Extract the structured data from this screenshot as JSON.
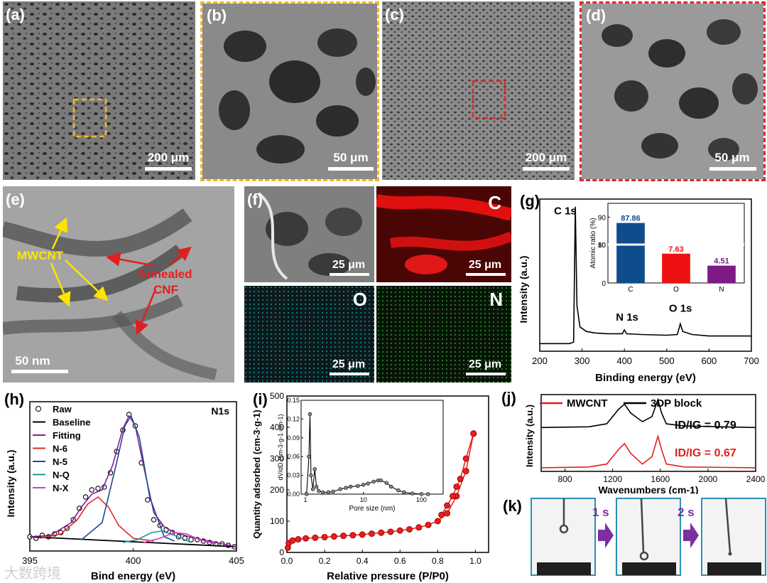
{
  "panels": {
    "a": {
      "label": "(a)",
      "scale": "200 μm"
    },
    "b": {
      "label": "(b)",
      "scale": "50 μm"
    },
    "c": {
      "label": "(c)",
      "scale": "200 μm"
    },
    "d": {
      "label": "(d)",
      "scale": "50 μm"
    },
    "e": {
      "label": "(e)",
      "scale": "50 nm",
      "annotation_1": "MWCNT",
      "annotation_2a": "Annealed",
      "annotation_2b": "CNF"
    },
    "f": {
      "label": "(f)",
      "scale": "25 μm",
      "maps": [
        "C",
        "O",
        "N"
      ]
    },
    "g": {
      "label": "(g)"
    },
    "h": {
      "label": "(h)"
    },
    "i": {
      "label": "(i)"
    },
    "j": {
      "label": "(j)"
    },
    "k": {
      "label": "(k)",
      "step1": "1 s",
      "step2": "2 s"
    }
  },
  "watermark": "大数跨境",
  "colors": {
    "yellow_box": "#f2b823",
    "red_box": "#d92b2b",
    "arrow_yellow": "#ffe400",
    "arrow_red": "#e02020",
    "bar_C": "#0f4c8c",
    "bar_O": "#ee1111",
    "bar_N": "#7d1a86"
  },
  "chart_data": [
    {
      "id": "g",
      "type": "line",
      "xlabel": "Binding energy (eV)",
      "ylabel": "Intensity (a.u.)",
      "xlim": [
        200,
        700
      ],
      "xticks": [
        200,
        300,
        400,
        500,
        600,
        700
      ],
      "peaks": [
        {
          "label": "C 1s",
          "x": 284
        },
        {
          "label": "N 1s",
          "x": 400
        },
        {
          "label": "O 1s",
          "x": 532
        }
      ],
      "x": [
        200,
        270,
        280,
        284,
        288,
        295,
        310,
        330,
        360,
        395,
        400,
        405,
        440,
        500,
        525,
        532,
        538,
        560,
        600,
        650,
        700
      ],
      "y": [
        0.05,
        0.05,
        0.06,
        0.95,
        0.3,
        0.16,
        0.13,
        0.12,
        0.115,
        0.115,
        0.14,
        0.115,
        0.11,
        0.105,
        0.11,
        0.18,
        0.13,
        0.11,
        0.1,
        0.1,
        0.1
      ],
      "inset": {
        "type": "bar",
        "ylabel": "Atomic ratio (%)",
        "categories": [
          "C",
          "O",
          "N"
        ],
        "values": [
          87.86,
          7.63,
          4.51
        ],
        "yticks": [
          0,
          10,
          80,
          90
        ],
        "axis_break": true
      }
    },
    {
      "id": "h",
      "type": "line",
      "title": "N1s",
      "xlabel": "Bind energy (eV)",
      "ylabel": "Intensity (a.u.)",
      "xlim": [
        395,
        405
      ],
      "xticks": [
        395,
        400,
        405
      ],
      "legend": [
        "Raw",
        "Baseline",
        "Fitting",
        "N-6",
        "N-5",
        "N-Q",
        "N-X"
      ],
      "series": [
        {
          "name": "Raw",
          "x": [
            395.0,
            395.3,
            395.6,
            395.9,
            396.2,
            396.5,
            396.8,
            397.1,
            397.4,
            397.7,
            398.0,
            398.3,
            398.6,
            398.9,
            399.2,
            399.5,
            399.8,
            400.1,
            400.4,
            400.7,
            401.0,
            401.3,
            401.6,
            401.9,
            402.2,
            402.5,
            402.8,
            403.1,
            403.4,
            403.7,
            404.0,
            404.3,
            404.6,
            404.9
          ],
          "y": [
            0.1,
            0.09,
            0.11,
            0.1,
            0.12,
            0.13,
            0.16,
            0.22,
            0.3,
            0.38,
            0.43,
            0.44,
            0.45,
            0.55,
            0.7,
            0.85,
            0.96,
            0.88,
            0.62,
            0.36,
            0.22,
            0.18,
            0.15,
            0.13,
            0.1,
            0.09,
            0.08,
            0.08,
            0.07,
            0.06,
            0.05,
            0.05,
            0.04,
            0.03
          ]
        },
        {
          "name": "Baseline",
          "x": [
            395,
            405
          ],
          "y": [
            0.1,
            0.03
          ]
        },
        {
          "name": "Fitting",
          "x": [
            395.0,
            396.0,
            397.0,
            397.5,
            398.0,
            398.5,
            399.0,
            399.5,
            399.8,
            400.1,
            400.5,
            401.0,
            401.5,
            402.0,
            403.0,
            404.0,
            405.0
          ],
          "y": [
            0.1,
            0.11,
            0.2,
            0.31,
            0.4,
            0.43,
            0.6,
            0.86,
            0.95,
            0.88,
            0.6,
            0.27,
            0.17,
            0.13,
            0.09,
            0.06,
            0.03
          ]
        },
        {
          "name": "N-6",
          "x": [
            395.5,
            396.5,
            397.3,
            397.8,
            398.3,
            398.8,
            399.3,
            400.0,
            401.0
          ],
          "y": [
            0.09,
            0.12,
            0.22,
            0.33,
            0.38,
            0.31,
            0.18,
            0.09,
            0.07
          ]
        },
        {
          "name": "N-5",
          "x": [
            397.5,
            398.5,
            399.2,
            399.6,
            399.9,
            400.3,
            400.8,
            401.5,
            402.0
          ],
          "y": [
            0.08,
            0.2,
            0.62,
            0.88,
            0.95,
            0.8,
            0.38,
            0.1,
            0.07
          ]
        },
        {
          "name": "N-Q",
          "x": [
            399.5,
            400.2,
            400.9,
            401.4,
            402.0,
            402.8
          ],
          "y": [
            0.06,
            0.08,
            0.13,
            0.14,
            0.11,
            0.06
          ]
        },
        {
          "name": "N-X",
          "x": [
            400.5,
            401.3,
            402.0,
            402.6,
            403.2,
            404.0
          ],
          "y": [
            0.06,
            0.09,
            0.13,
            0.12,
            0.08,
            0.05
          ]
        }
      ]
    },
    {
      "id": "i",
      "type": "line",
      "xlabel": "Relative pressure (P/P0)",
      "ylabel": "Quantity adsorbed (cm-3·g-1)",
      "xlim": [
        0,
        1.0
      ],
      "ylim": [
        0,
        500
      ],
      "xticks": [
        0.0,
        0.2,
        0.4,
        0.6,
        0.8,
        1.0
      ],
      "yticks": [
        0,
        100,
        200,
        300,
        400,
        500
      ],
      "series": [
        {
          "name": "adsorption",
          "x": [
            0.005,
            0.01,
            0.03,
            0.06,
            0.1,
            0.15,
            0.2,
            0.25,
            0.3,
            0.35,
            0.4,
            0.45,
            0.5,
            0.55,
            0.6,
            0.65,
            0.7,
            0.75,
            0.8,
            0.85,
            0.9,
            0.95,
            0.99
          ],
          "y": [
            15,
            30,
            38,
            42,
            45,
            47,
            49,
            51,
            53,
            55,
            57,
            60,
            63,
            66,
            70,
            74,
            80,
            88,
            100,
            125,
            180,
            260,
            380
          ]
        },
        {
          "name": "desorption",
          "x": [
            0.99,
            0.95,
            0.92,
            0.9,
            0.88,
            0.85,
            0.82
          ],
          "y": [
            380,
            300,
            235,
            210,
            180,
            150,
            120
          ]
        }
      ],
      "inset": {
        "type": "line",
        "xlabel": "Pore size (nm)",
        "ylabel": "dV/dD (cm-3·g-1·nm-1)",
        "xscale": "log",
        "xticks": [
          1,
          10,
          100
        ],
        "ylim": [
          0,
          0.15
        ],
        "yticks": [
          0.0,
          0.03,
          0.06,
          0.09,
          0.12,
          0.15
        ],
        "x": [
          1.05,
          1.15,
          1.2,
          1.25,
          1.35,
          1.45,
          1.55,
          1.7,
          2.0,
          2.5,
          3,
          4,
          5,
          6,
          8,
          10,
          12,
          15,
          18,
          20,
          25,
          30,
          40,
          50,
          70,
          100,
          130
        ],
        "y": [
          0.0,
          0.06,
          0.128,
          0.03,
          0.008,
          0.04,
          0.012,
          0.005,
          0.003,
          0.003,
          0.004,
          0.008,
          0.01,
          0.012,
          0.013,
          0.015,
          0.017,
          0.02,
          0.022,
          0.022,
          0.018,
          0.012,
          0.006,
          0.003,
          0.001,
          0.0,
          0.0
        ]
      }
    },
    {
      "id": "j",
      "type": "line",
      "xlabel": "Wavenumbers (cm-1)",
      "ylabel": "Intensity (a.u.)",
      "xlim": [
        600,
        2400
      ],
      "xticks": [
        800,
        1200,
        1600,
        2000,
        2400
      ],
      "legend": [
        "MWCNT",
        "3DP block"
      ],
      "annotations": [
        {
          "text": "ID/IG = 0.79",
          "series": "3DP block"
        },
        {
          "text": "ID/IG = 0.67",
          "series": "MWCNT"
        }
      ],
      "series": [
        {
          "name": "MWCNT",
          "x": [
            600,
            1000,
            1150,
            1250,
            1300,
            1350,
            1450,
            1530,
            1580,
            1610,
            1650,
            1800,
            2400
          ],
          "y": [
            0.05,
            0.06,
            0.1,
            0.3,
            0.38,
            0.25,
            0.1,
            0.2,
            0.48,
            0.3,
            0.1,
            0.06,
            0.05
          ]
        },
        {
          "name": "3DP block",
          "x": [
            600,
            1000,
            1150,
            1250,
            1300,
            1350,
            1450,
            1530,
            1580,
            1610,
            1650,
            1800,
            2400
          ],
          "y": [
            0.6,
            0.61,
            0.65,
            0.85,
            0.92,
            0.8,
            0.68,
            0.75,
            0.98,
            0.8,
            0.65,
            0.62,
            0.6
          ]
        }
      ]
    }
  ]
}
